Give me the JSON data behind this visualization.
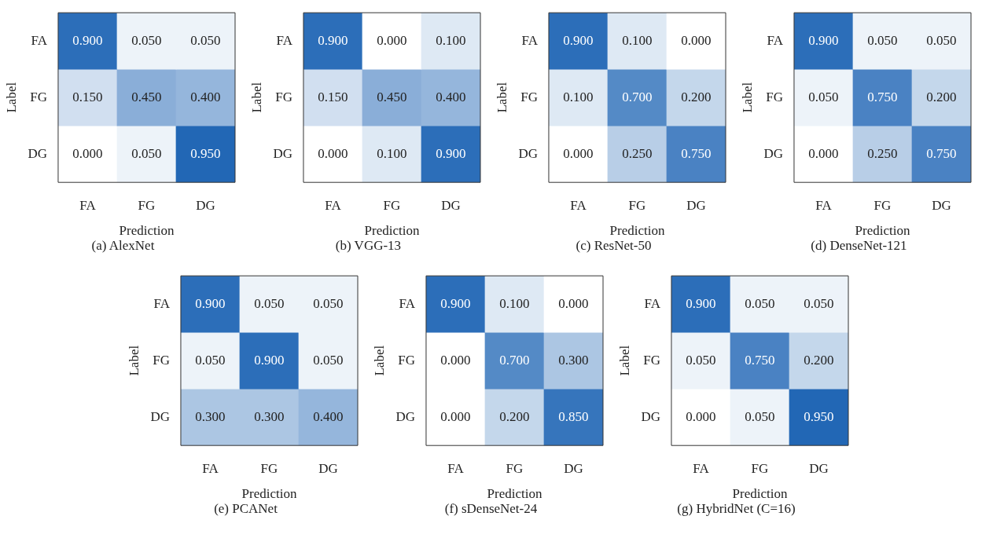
{
  "chart_data": [
    {
      "type": "heatmap",
      "title": "(a) AlexNet",
      "xlabel": "Prediction",
      "ylabel": "Label",
      "categories": [
        "FA",
        "FG",
        "DG"
      ],
      "y_categories": [
        "FA",
        "FG",
        "DG"
      ],
      "cells": [
        [
          0.9,
          0.05,
          0.05
        ],
        [
          0.15,
          0.45,
          0.4
        ],
        [
          0,
          0.05,
          0.95
        ]
      ],
      "cell_labels": [
        [
          "0.900",
          "0.050",
          "0.050"
        ],
        [
          "0.150",
          "0.450",
          "0.400"
        ],
        [
          "0.000",
          "0.050",
          "0.950"
        ]
      ]
    },
    {
      "type": "heatmap",
      "title": "(b) VGG-13",
      "xlabel": "Prediction",
      "ylabel": "Label",
      "categories": [
        "FA",
        "FG",
        "DG"
      ],
      "y_categories": [
        "FA",
        "FG",
        "DG"
      ],
      "cells": [
        [
          0.9,
          0,
          0.1
        ],
        [
          0.15,
          0.45,
          0.4
        ],
        [
          0,
          0.1,
          0.9
        ]
      ],
      "cell_labels": [
        [
          "0.900",
          "0.000",
          "0.100"
        ],
        [
          "0.150",
          "0.450",
          "0.400"
        ],
        [
          "0.000",
          "0.100",
          "0.900"
        ]
      ]
    },
    {
      "type": "heatmap",
      "title": "(c) ResNet-50",
      "xlabel": "Prediction",
      "ylabel": "Label",
      "categories": [
        "FA",
        "FG",
        "DG"
      ],
      "y_categories": [
        "FA",
        "FG",
        "DG"
      ],
      "cells": [
        [
          0.9,
          0.1,
          0
        ],
        [
          0.1,
          0.7,
          0.2
        ],
        [
          0,
          0.25,
          0.75
        ]
      ],
      "cell_labels": [
        [
          "0.900",
          "0.100",
          "0.000"
        ],
        [
          "0.100",
          "0.700",
          "0.200"
        ],
        [
          "0.000",
          "0.250",
          "0.750"
        ]
      ]
    },
    {
      "type": "heatmap",
      "title": "(d) DenseNet-121",
      "xlabel": "Prediction",
      "ylabel": "Label",
      "categories": [
        "FA",
        "FG",
        "DG"
      ],
      "y_categories": [
        "FA",
        "FG",
        "DG"
      ],
      "cells": [
        [
          0.9,
          0.05,
          0.05
        ],
        [
          0.05,
          0.75,
          0.2
        ],
        [
          0,
          0.25,
          0.75
        ]
      ],
      "cell_labels": [
        [
          "0.900",
          "0.050",
          "0.050"
        ],
        [
          "0.050",
          "0.750",
          "0.200"
        ],
        [
          "0.000",
          "0.250",
          "0.750"
        ]
      ]
    },
    {
      "type": "heatmap",
      "title": "(e) PCANet",
      "xlabel": "Prediction",
      "ylabel": "Label",
      "categories": [
        "FA",
        "FG",
        "DG"
      ],
      "y_categories": [
        "FA",
        "FG",
        "DG"
      ],
      "cells": [
        [
          0.9,
          0.05,
          0.05
        ],
        [
          0.05,
          0.9,
          0.05
        ],
        [
          0.3,
          0.3,
          0.4
        ]
      ],
      "cell_labels": [
        [
          "0.900",
          "0.050",
          "0.050"
        ],
        [
          "0.050",
          "0.900",
          "0.050"
        ],
        [
          "0.300",
          "0.300",
          "0.400"
        ]
      ]
    },
    {
      "type": "heatmap",
      "title": "(f) sDenseNet-24",
      "xlabel": "Prediction",
      "ylabel": "Label",
      "categories": [
        "FA",
        "FG",
        "DG"
      ],
      "y_categories": [
        "FA",
        "FG",
        "DG"
      ],
      "cells": [
        [
          0.9,
          0.1,
          0
        ],
        [
          0,
          0.7,
          0.3
        ],
        [
          0,
          0.2,
          0.85
        ]
      ],
      "cell_labels": [
        [
          "0.900",
          "0.100",
          "0.000"
        ],
        [
          "0.000",
          "0.700",
          "0.300"
        ],
        [
          "0.000",
          "0.200",
          "0.850"
        ]
      ]
    },
    {
      "type": "heatmap",
      "title": "(g) HybridNet (C=16)",
      "xlabel": "Prediction",
      "ylabel": "Label",
      "categories": [
        "FA",
        "FG",
        "DG"
      ],
      "y_categories": [
        "FA",
        "FG",
        "DG"
      ],
      "cells": [
        [
          0.9,
          0.05,
          0.05
        ],
        [
          0.05,
          0.75,
          0.2
        ],
        [
          0,
          0.05,
          0.95
        ]
      ],
      "cell_labels": [
        [
          "0.900",
          "0.050",
          "0.050"
        ],
        [
          "0.050",
          "0.750",
          "0.200"
        ],
        [
          "0.000",
          "0.050",
          "0.950"
        ]
      ]
    }
  ]
}
